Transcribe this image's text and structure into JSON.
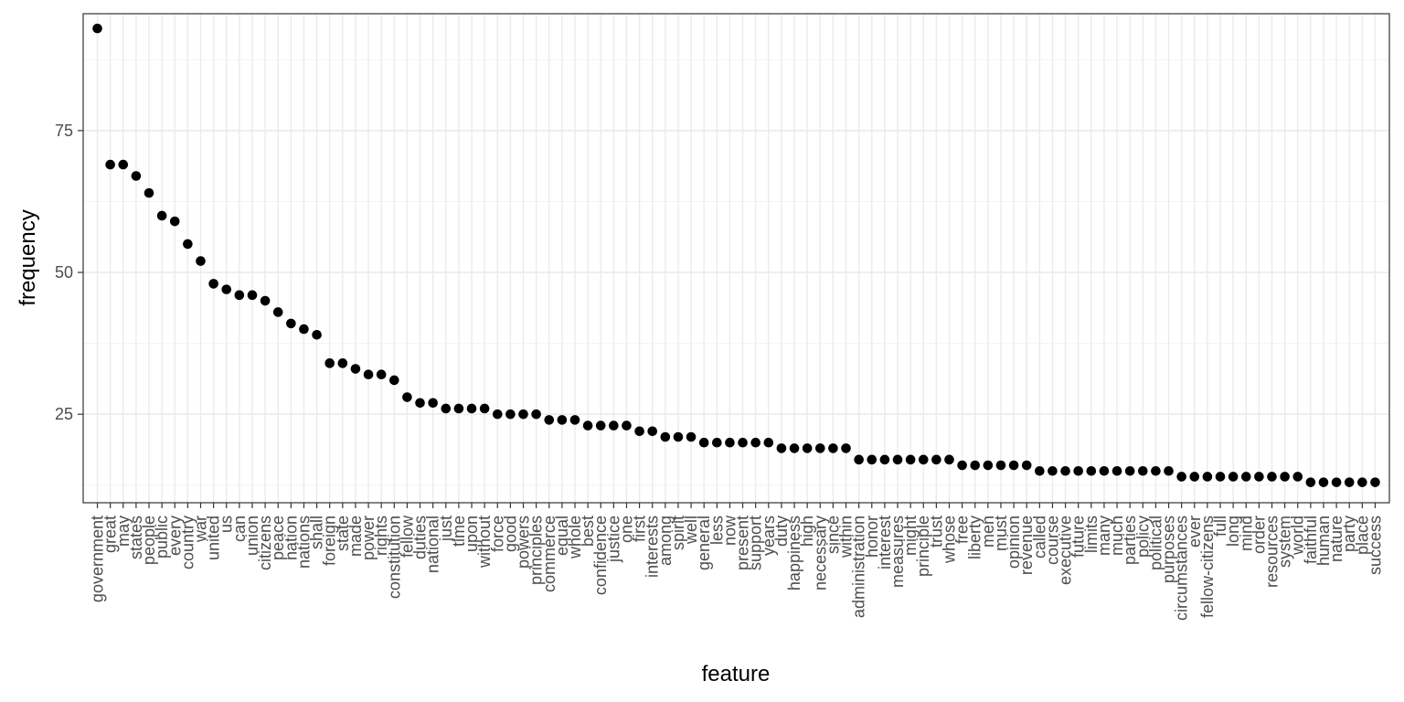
{
  "chart_data": {
    "type": "scatter",
    "title": "",
    "xlabel": "feature",
    "ylabel": "frequency",
    "ylim": [
      9.4,
      95.6
    ],
    "y_ticks": [
      25,
      50,
      75
    ],
    "y_tick_labels": [
      "25",
      "50",
      "75"
    ],
    "grid": true,
    "theme": "bw",
    "point_color": "#000000",
    "categories": [
      "government",
      "great",
      "may",
      "states",
      "people",
      "public",
      "every",
      "country",
      "war",
      "united",
      "us",
      "can",
      "union",
      "citizens",
      "peace",
      "nation",
      "nations",
      "shall",
      "foreign",
      "state",
      "made",
      "power",
      "rights",
      "constitution",
      "fellow",
      "duties",
      "national",
      "just",
      "time",
      "upon",
      "without",
      "force",
      "good",
      "powers",
      "principles",
      "commerce",
      "equal",
      "whole",
      "best",
      "confidence",
      "justice",
      "one",
      "first",
      "interests",
      "among",
      "spirit",
      "well",
      "general",
      "less",
      "now",
      "present",
      "support",
      "years",
      "duty",
      "happiness",
      "high",
      "necessary",
      "since",
      "within",
      "administration",
      "honor",
      "interest",
      "measures",
      "might",
      "principle",
      "trust",
      "whose",
      "free",
      "liberty",
      "men",
      "must",
      "opinion",
      "revenue",
      "called",
      "course",
      "executive",
      "future",
      "limits",
      "many",
      "much",
      "parties",
      "policy",
      "political",
      "purposes",
      "circumstances",
      "ever",
      "fellow-citizens",
      "full",
      "long",
      "mind",
      "order",
      "resources",
      "system",
      "world",
      "faithful",
      "human",
      "nature",
      "party",
      "place",
      "success"
    ],
    "values": [
      93,
      69,
      69,
      67,
      64,
      60,
      59,
      55,
      52,
      48,
      47,
      46,
      46,
      45,
      43,
      41,
      40,
      39,
      34,
      34,
      33,
      32,
      32,
      31,
      28,
      27,
      27,
      26,
      26,
      26,
      26,
      25,
      25,
      25,
      25,
      24,
      24,
      24,
      23,
      23,
      23,
      23,
      22,
      22,
      21,
      21,
      21,
      20,
      20,
      20,
      20,
      20,
      20,
      19,
      19,
      19,
      19,
      19,
      19,
      17,
      17,
      17,
      17,
      17,
      17,
      17,
      17,
      16,
      16,
      16,
      16,
      16,
      16,
      15,
      15,
      15,
      15,
      15,
      15,
      15,
      15,
      15,
      15,
      15,
      14,
      14,
      14,
      14,
      14,
      14,
      14,
      14,
      14,
      14,
      13,
      13,
      13,
      13,
      13,
      13
    ]
  }
}
